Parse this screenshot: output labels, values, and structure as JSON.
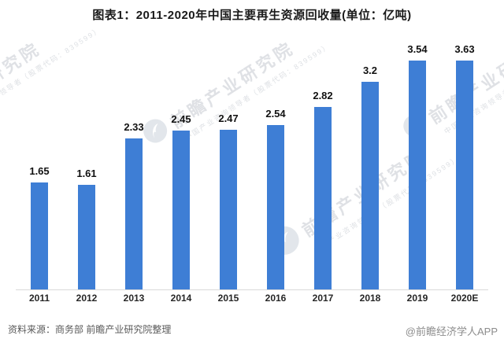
{
  "header": {
    "title": "图表1：2011-2020年中国主要再生资源回收量(单位：亿吨)"
  },
  "chart_data": {
    "type": "bar",
    "title": "图表1：2011-2020年中国主要再生资源回收量(单位：亿吨)",
    "categories": [
      "2011",
      "2012",
      "2013",
      "2014",
      "2015",
      "2016",
      "2017",
      "2018",
      "2019",
      "2020E"
    ],
    "values": [
      1.65,
      1.61,
      2.33,
      2.45,
      2.47,
      2.54,
      2.82,
      3.2,
      3.54,
      3.63
    ],
    "value_labels": [
      "1.65",
      "1.61",
      "2.33",
      "2.45",
      "2.47",
      "2.54",
      "2.82",
      "3.2",
      "3.54",
      "3.63"
    ],
    "unit": "亿吨",
    "xlabel": "",
    "ylabel": "",
    "ylim": [
      0,
      3.63
    ],
    "grid": false,
    "legend": "none"
  },
  "watermark": {
    "brand_text": "前瞻产业研究院",
    "sub_text": "中国产业咨询领导者（股票代码：839599）",
    "logo_icon": "qianzhan-bird-logo"
  },
  "footer": {
    "source": "资料来源：商务部 前瞻产业研究院整理",
    "credit": "@前瞻经济学人APP"
  },
  "colors": {
    "bar": "#3E7ED5",
    "axis_line": "#D9D9D9",
    "value_label": "#111111",
    "tick_label": "#262626",
    "source_text": "#595959",
    "credit_text": "#8C8C8C",
    "watermark": "#C6CAD1"
  }
}
